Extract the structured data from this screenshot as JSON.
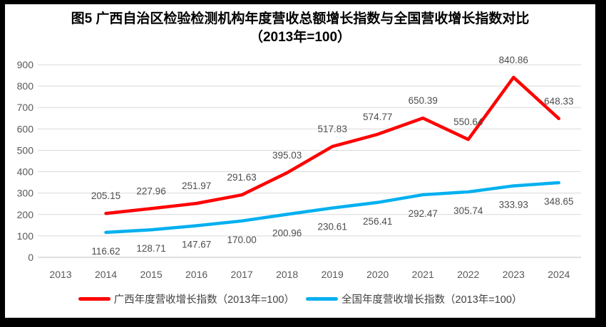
{
  "chart_data": {
    "type": "line",
    "title": "图5 广西自治区检验检测机构年度营收总额增长指数与全国营收增长指数对比（2013年=100）",
    "categories": [
      "2013",
      "2014",
      "2015",
      "2016",
      "2017",
      "2018",
      "2019",
      "2020",
      "2021",
      "2022",
      "2023",
      "2024"
    ],
    "xlabel": "",
    "ylabel": "",
    "ylim": [
      0,
      900
    ],
    "y_ticks": [
      0,
      100,
      200,
      300,
      400,
      500,
      600,
      700,
      800,
      900
    ],
    "grid": "horizontal",
    "legend_position": "bottom",
    "series": [
      {
        "name": "广西年度营收增长指数（2013年=100）",
        "color": "#fe0000",
        "x_start_index": 1,
        "values": [
          205.15,
          227.96,
          251.97,
          291.63,
          395.03,
          517.83,
          574.77,
          650.39,
          550.64,
          840.86,
          648.33
        ],
        "labels": [
          "205.15",
          "227.96",
          "251.97",
          "291.63",
          "395.03",
          "517.83",
          "574.77",
          "650.39",
          "550.64",
          "840.86",
          "648.33"
        ],
        "label_position": "above"
      },
      {
        "name": "全国年度营收增长指数（2013年=100）",
        "color": "#00b0f0",
        "x_start_index": 1,
        "values": [
          116.62,
          128.71,
          147.67,
          170.0,
          200.96,
          230.61,
          256.41,
          292.47,
          305.74,
          333.93,
          348.65
        ],
        "labels": [
          "116.62",
          "128.71",
          "147.67",
          "170.00",
          "200.96",
          "230.61",
          "256.41",
          "292.47",
          "305.74",
          "333.93",
          "348.65"
        ],
        "label_position": "below"
      }
    ]
  },
  "colors": {
    "gridline": "#d9d9d9",
    "zero_line": "#bfbfbf",
    "axis_text": "#595959",
    "data_label_text": "#4d4d4d",
    "title_text": "#000000",
    "background": "#ffffff",
    "frame_border": "#000000"
  }
}
